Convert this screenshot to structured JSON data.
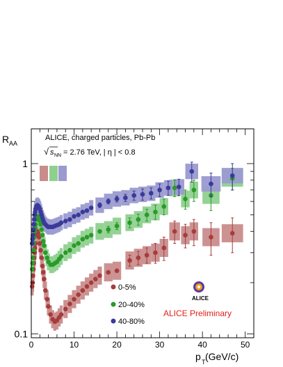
{
  "chart_data": {
    "type": "scatter",
    "title": "ALICE, charged particles, Pb-Pb",
    "subtitle_energy": "= 2.76 TeV, | η | < 0.8",
    "subtitle_sqrt_symbol": "√",
    "subtitle_s": "s",
    "subtitle_nn": "NN",
    "ylabel_main": "R",
    "ylabel_sub": "AA",
    "xlabel_main": "p",
    "xlabel_sub": "T",
    "xlabel_unit": " (GeV/c)",
    "preliminary_label": "ALICE Preliminary",
    "logo_text": "ALICE",
    "ylog": true,
    "ylim": [
      0.095,
      1.6
    ],
    "xlim": [
      0,
      52
    ],
    "x_ticks": [
      "0",
      "10",
      "20",
      "30",
      "40",
      "50"
    ],
    "y_ticks": [
      "0.1",
      "1"
    ],
    "colors": {
      "0-5%": "#a63c3c",
      "20-40%": "#2a9a2a",
      "40-80%": "#3a3a9a",
      "preliminary": "#e0201a"
    },
    "norm_box_colors": [
      "#c98c8c",
      "#8fd08f",
      "#9a9ad0"
    ],
    "series": [
      {
        "name": "0-5%",
        "color": "#a63c3c",
        "box_color": "#c98c8c",
        "x": [
          0.2,
          0.3,
          0.4,
          0.5,
          0.6,
          0.7,
          0.8,
          0.9,
          1.0,
          1.2,
          1.4,
          1.6,
          1.8,
          2.0,
          2.2,
          2.4,
          2.6,
          2.8,
          3.0,
          3.3,
          3.7,
          4.0,
          4.5,
          5.0,
          5.5,
          6.0,
          6.5,
          7.0,
          8.0,
          9.0,
          10.0,
          11.0,
          12.0,
          13.0,
          14.0,
          15.0,
          16.0,
          18.0,
          20.0,
          23.0,
          25.0,
          27.0,
          29.0,
          31.0,
          33.5,
          36.0,
          38.0,
          42.0,
          47.0
        ],
        "y": [
          0.19,
          0.2,
          0.22,
          0.24,
          0.26,
          0.28,
          0.3,
          0.32,
          0.34,
          0.38,
          0.4,
          0.39,
          0.37,
          0.34,
          0.31,
          0.28,
          0.25,
          0.23,
          0.21,
          0.18,
          0.16,
          0.145,
          0.13,
          0.122,
          0.118,
          0.12,
          0.125,
          0.13,
          0.14,
          0.15,
          0.16,
          0.17,
          0.18,
          0.19,
          0.2,
          0.21,
          0.22,
          0.23,
          0.235,
          0.27,
          0.28,
          0.29,
          0.3,
          0.32,
          0.4,
          0.38,
          0.4,
          0.37,
          0.39
        ],
        "err": [
          0.005,
          0.005,
          0.005,
          0.005,
          0.005,
          0.005,
          0.005,
          0.005,
          0.005,
          0.005,
          0.005,
          0.005,
          0.005,
          0.005,
          0.005,
          0.005,
          0.005,
          0.005,
          0.005,
          0.005,
          0.004,
          0.004,
          0.004,
          0.004,
          0.004,
          0.004,
          0.004,
          0.004,
          0.005,
          0.005,
          0.005,
          0.005,
          0.006,
          0.006,
          0.007,
          0.008,
          0.009,
          0.01,
          0.012,
          0.02,
          0.025,
          0.03,
          0.04,
          0.05,
          0.06,
          0.06,
          0.07,
          0.08,
          0.09
        ],
        "sys": 0.13
      },
      {
        "name": "20-40%",
        "color": "#2a9a2a",
        "box_color": "#8fd08f",
        "x": [
          0.2,
          0.3,
          0.4,
          0.5,
          0.6,
          0.7,
          0.8,
          0.9,
          1.0,
          1.2,
          1.4,
          1.6,
          1.8,
          2.0,
          2.2,
          2.4,
          2.6,
          2.8,
          3.0,
          3.3,
          3.7,
          4.0,
          4.5,
          5.0,
          5.5,
          6.0,
          6.5,
          7.0,
          8.0,
          9.0,
          10.0,
          11.0,
          12.0,
          13.0,
          14.0,
          16.0,
          18.0,
          20.0,
          23.0,
          25.0,
          27.0,
          29.0,
          31.0,
          33.5,
          36.0,
          38.0,
          42.0,
          47.0
        ],
        "y": [
          0.24,
          0.26,
          0.28,
          0.31,
          0.34,
          0.37,
          0.4,
          0.42,
          0.44,
          0.47,
          0.49,
          0.49,
          0.48,
          0.46,
          0.44,
          0.41,
          0.38,
          0.35,
          0.33,
          0.3,
          0.28,
          0.265,
          0.255,
          0.255,
          0.26,
          0.265,
          0.275,
          0.285,
          0.3,
          0.31,
          0.33,
          0.34,
          0.36,
          0.37,
          0.38,
          0.4,
          0.41,
          0.43,
          0.45,
          0.47,
          0.5,
          0.52,
          0.56,
          0.72,
          0.62,
          0.7,
          0.65,
          0.82
        ],
        "err": [
          0.005,
          0.005,
          0.005,
          0.005,
          0.005,
          0.005,
          0.005,
          0.005,
          0.005,
          0.005,
          0.005,
          0.005,
          0.005,
          0.005,
          0.005,
          0.005,
          0.005,
          0.005,
          0.005,
          0.005,
          0.005,
          0.005,
          0.005,
          0.005,
          0.005,
          0.005,
          0.005,
          0.005,
          0.006,
          0.006,
          0.007,
          0.008,
          0.009,
          0.01,
          0.012,
          0.015,
          0.018,
          0.02,
          0.03,
          0.035,
          0.04,
          0.05,
          0.06,
          0.08,
          0.08,
          0.1,
          0.12,
          0.12
        ],
        "sys": 0.12
      },
      {
        "name": "40-80%",
        "color": "#3a3a9a",
        "box_color": "#9a9ad0",
        "x": [
          0.2,
          0.3,
          0.4,
          0.5,
          0.6,
          0.7,
          0.8,
          0.9,
          1.0,
          1.2,
          1.4,
          1.6,
          1.8,
          2.0,
          2.2,
          2.4,
          2.6,
          2.8,
          3.0,
          3.3,
          3.7,
          4.0,
          4.5,
          5.0,
          5.5,
          6.0,
          6.5,
          7.0,
          8.0,
          9.0,
          10.0,
          11.0,
          12.0,
          13.0,
          14.0,
          16.0,
          18.0,
          20.0,
          22.0,
          24.0,
          26.0,
          28.0,
          30.0,
          32.0,
          34.5,
          37.5,
          42.0,
          47.0
        ],
        "y": [
          0.34,
          0.36,
          0.38,
          0.41,
          0.44,
          0.47,
          0.5,
          0.52,
          0.54,
          0.56,
          0.57,
          0.565,
          0.555,
          0.54,
          0.52,
          0.5,
          0.48,
          0.465,
          0.45,
          0.44,
          0.43,
          0.425,
          0.425,
          0.425,
          0.43,
          0.435,
          0.44,
          0.45,
          0.46,
          0.47,
          0.49,
          0.5,
          0.52,
          0.53,
          0.55,
          0.57,
          0.6,
          0.62,
          0.63,
          0.65,
          0.66,
          0.67,
          0.7,
          0.72,
          0.73,
          0.9,
          0.76,
          0.85
        ],
        "err": [
          0.005,
          0.005,
          0.005,
          0.005,
          0.005,
          0.005,
          0.005,
          0.005,
          0.005,
          0.005,
          0.005,
          0.005,
          0.005,
          0.005,
          0.005,
          0.005,
          0.005,
          0.005,
          0.005,
          0.005,
          0.005,
          0.005,
          0.005,
          0.005,
          0.005,
          0.005,
          0.005,
          0.005,
          0.006,
          0.007,
          0.008,
          0.009,
          0.01,
          0.012,
          0.014,
          0.018,
          0.02,
          0.025,
          0.03,
          0.04,
          0.05,
          0.05,
          0.06,
          0.07,
          0.08,
          0.12,
          0.12,
          0.15
        ],
        "sys": 0.11
      }
    ],
    "legend": [
      "0-5%",
      "20-40%",
      "40-80%"
    ]
  }
}
